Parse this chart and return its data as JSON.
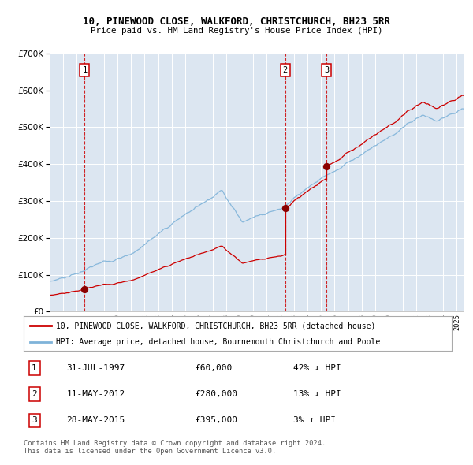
{
  "title1": "10, PINEWOOD CLOSE, WALKFORD, CHRISTCHURCH, BH23 5RR",
  "title2": "Price paid vs. HM Land Registry's House Price Index (HPI)",
  "bg_color": "#dce6f1",
  "grid_color": "#ffffff",
  "sale1_date": 1997.58,
  "sale1_price": 60000,
  "sale2_date": 2012.36,
  "sale2_price": 280000,
  "sale3_date": 2015.41,
  "sale3_price": 395000,
  "legend_label_red": "10, PINEWOOD CLOSE, WALKFORD, CHRISTCHURCH, BH23 5RR (detached house)",
  "legend_label_blue": "HPI: Average price, detached house, Bournemouth Christchurch and Poole",
  "entries": [
    [
      "1",
      "31-JUL-1997",
      "£60,000",
      "42% ↓ HPI"
    ],
    [
      "2",
      "11-MAY-2012",
      "£280,000",
      "13% ↓ HPI"
    ],
    [
      "3",
      "28-MAY-2015",
      "£395,000",
      "3% ↑ HPI"
    ]
  ],
  "footer": "Contains HM Land Registry data © Crown copyright and database right 2024.\nThis data is licensed under the Open Government Licence v3.0.",
  "xmin": 1995.0,
  "xmax": 2025.5,
  "ymin": 0,
  "ymax": 700000
}
